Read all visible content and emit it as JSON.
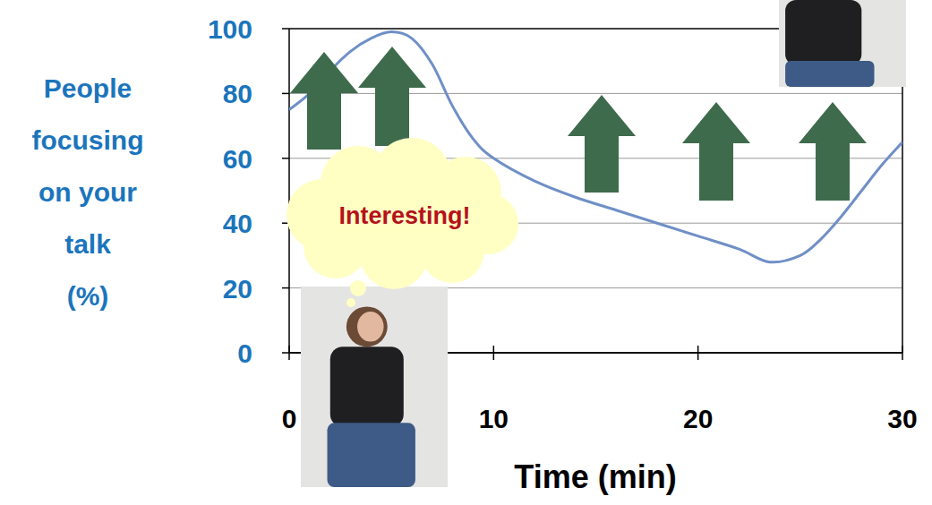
{
  "chart_data": {
    "type": "line",
    "x_label": "Time (min)",
    "y_label": "People focusing on your talk (%)",
    "annotation": "Interesting!",
    "x": [
      0,
      1,
      2,
      3,
      4,
      5,
      6,
      7,
      8,
      9,
      10,
      12,
      14,
      16,
      18,
      20,
      22,
      23.5,
      25,
      26,
      27,
      28,
      29,
      30
    ],
    "values": [
      75,
      80,
      87,
      93,
      97,
      99,
      97,
      89,
      76,
      66,
      60,
      53,
      48,
      44,
      40,
      36,
      32,
      28,
      30,
      35,
      42,
      50,
      58,
      65
    ],
    "color": "#6f8fc6",
    "xlim": [
      0,
      30
    ],
    "ylim": [
      0,
      100
    ],
    "xticks": [
      0,
      10,
      20,
      30
    ],
    "yticks": [
      0,
      20,
      40,
      60,
      80,
      100
    ],
    "grid": true
  }
}
